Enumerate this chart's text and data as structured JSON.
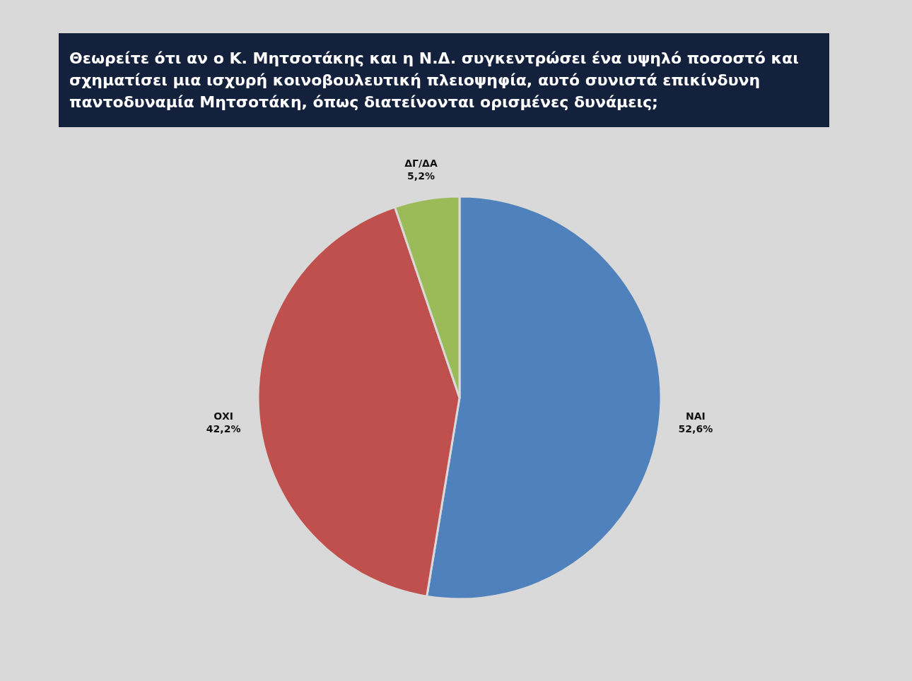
{
  "chart_data": {
    "type": "pie",
    "title": "Θεωρείτε ότι αν ο Κ. Μητσοτάκης και η Ν.Δ. συγκεντρώσει ένα υψηλό ποσοστό και σχηματίσει μια ισχυρή κοινοβουλευτική πλειοψηφία, αυτό συνιστά επικίνδυνη παντοδυναμία Μητσοτάκη, όπως διατείνονται ορισμένες δυνάμεις;",
    "categories": [
      "ΝΑΙ",
      "ΟΧΙ",
      "ΔΓ/ΔΑ"
    ],
    "values": [
      52.6,
      42.2,
      5.2
    ],
    "value_labels": [
      "52,6%",
      "42,2%",
      "5,2%"
    ],
    "colors": [
      "#4f81bd",
      "#c0504d",
      "#9bbb59"
    ]
  }
}
